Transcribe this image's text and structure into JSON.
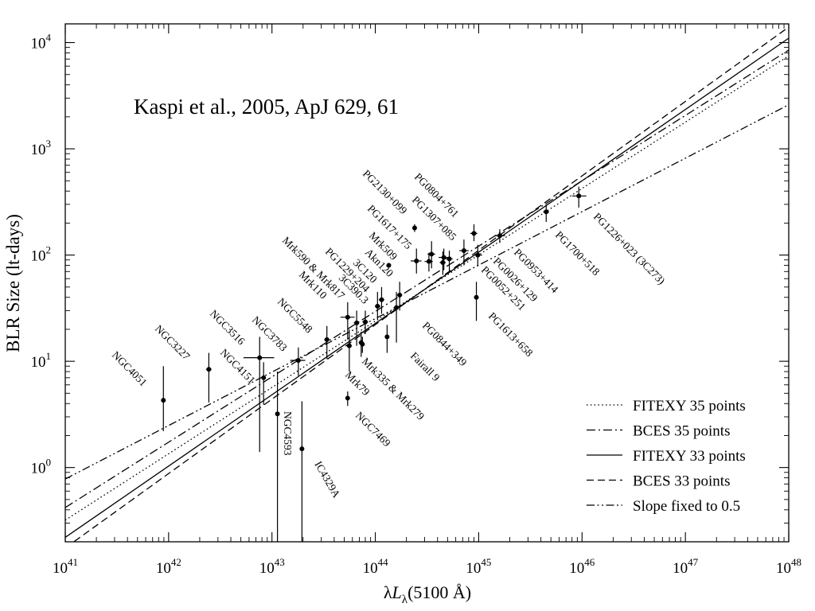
{
  "chart_data": {
    "type": "scatter",
    "annotation": "Kaspi et al., 2005, ApJ 629, 61",
    "xlabel": {
      "main": "λ",
      "sym": "L",
      "sub": "λ",
      "rest": "(5100 Å)"
    },
    "ylabel": "BLR Size (lt-days)",
    "xscale": "log",
    "yscale": "log",
    "xlim": [
      1e+41,
      1e+48
    ],
    "ylim": [
      0.2,
      15000
    ],
    "x_tick_labels": [
      {
        "base": "10",
        "exp": "41",
        "value": 1e+41
      },
      {
        "base": "10",
        "exp": "42",
        "value": 1e+42
      },
      {
        "base": "10",
        "exp": "43",
        "value": 1e+43
      },
      {
        "base": "10",
        "exp": "44",
        "value": 1e+44
      },
      {
        "base": "10",
        "exp": "45",
        "value": 1e+45
      },
      {
        "base": "10",
        "exp": "46",
        "value": 1e+46
      },
      {
        "base": "10",
        "exp": "47",
        "value": 1e+47
      },
      {
        "base": "10",
        "exp": "48",
        "value": 1e+48
      }
    ],
    "y_tick_labels": [
      {
        "base": "10",
        "exp": "0",
        "value": 1
      },
      {
        "base": "10",
        "exp": "1",
        "value": 10
      },
      {
        "base": "10",
        "exp": "2",
        "value": 100
      },
      {
        "base": "10",
        "exp": "3",
        "value": 1000
      },
      {
        "base": "10",
        "exp": "4",
        "value": 10000
      }
    ],
    "grid": false,
    "legend_position": "bottom-right",
    "series": [
      {
        "name": "FITEXY 35 points",
        "style": "dotted",
        "points": [
          [
            1e+41,
            0.32
          ],
          [
            1e+48,
            7500
          ]
        ]
      },
      {
        "name": "BCES 35 points",
        "style": "dashdot",
        "points": [
          [
            1e+41,
            0.42
          ],
          [
            1e+48,
            8500
          ]
        ]
      },
      {
        "name": "FITEXY 33 points",
        "style": "solid",
        "points": [
          [
            1e+41,
            0.22
          ],
          [
            1e+48,
            11000
          ]
        ]
      },
      {
        "name": "BCES 33 points",
        "style": "dashed",
        "points": [
          [
            1e+41,
            0.175
          ],
          [
            1e+48,
            14000
          ]
        ]
      },
      {
        "name": "Slope fixed to 0.5",
        "style": "dashdotdot",
        "points": [
          [
            1e+41,
            0.78
          ],
          [
            1e+48,
            2600
          ]
        ]
      }
    ],
    "points": [
      {
        "label": "NGC4051",
        "x": 8.9e+41,
        "y": 4.3,
        "ylo": 2.2,
        "yhi": 9.0,
        "xlo": 8.6e+41,
        "xhi": 9.2e+41
      },
      {
        "label": "NGC3227",
        "x": 2.45e+42,
        "y": 8.4,
        "ylo": 4.1,
        "yhi": 12.0,
        "xlo": 2.3e+42,
        "xhi": 2.6e+42
      },
      {
        "label": "NGC3516",
        "x": 7.6e+42,
        "y": 10.8,
        "ylo": 1.4,
        "yhi": 17.0,
        "xlo": 5.3e+42,
        "xhi": 1.05e+43
      },
      {
        "label": "NGC4151",
        "x": 8.3e+42,
        "y": 7.0,
        "ylo": 3.9,
        "yhi": 9.8,
        "xlo": 7.9e+42,
        "xhi": 8.7e+42
      },
      {
        "label": "NGC3783",
        "x": 1.8e+43,
        "y": 10.2,
        "ylo": 7.3,
        "yhi": 13.5,
        "xlo": 1.5e+43,
        "xhi": 2.1e+43
      },
      {
        "label": "NGC4593",
        "x": 1.13e+43,
        "y": 3.2,
        "ylo": 0.2,
        "yhi": 8.0,
        "xlo": 1.1e+43,
        "xhi": 1.16e+43
      },
      {
        "label": "IC4329A",
        "x": 1.95e+43,
        "y": 1.5,
        "ylo": 0.2,
        "yhi": 4.2,
        "xlo": 1.9e+43,
        "xhi": 2e+43
      },
      {
        "label": "NGC5548",
        "x": 3.4e+43,
        "y": 16.0,
        "ylo": 10.5,
        "yhi": 21.5,
        "xlo": 3.2e+43,
        "xhi": 3.6e+43
      },
      {
        "label": "Mrk110",
        "x": 5.4e+43,
        "y": 26.0,
        "ylo": 16.0,
        "yhi": 36.0,
        "xlo": 4.6e+43,
        "xhi": 6.3e+43
      },
      {
        "label": "Mrk590 & Mrk817",
        "x": 5.6e+43,
        "y": 14.0,
        "ylo": 8.0,
        "yhi": 20.0,
        "xlo": 5.3e+43,
        "xhi": 5.9e+43
      },
      {
        "label": "PG1229+204",
        "x": 6.6e+43,
        "y": 23.0,
        "ylo": 14.0,
        "yhi": 30.0,
        "xlo": 6.2e+43,
        "xhi": 7e+43
      },
      {
        "label": "Mrk79",
        "x": 7.3e+43,
        "y": 15.0,
        "ylo": 11.0,
        "yhi": 19.0,
        "xlo": 6.9e+43,
        "xhi": 7.7e+43
      },
      {
        "label": "Mrk335 & Mrk279",
        "x": 7.5e+43,
        "y": 14.5,
        "ylo": 12.0,
        "yhi": 17.0,
        "xlo": 7.1e+43,
        "xhi": 7.9e+43
      },
      {
        "label": "NGC7469",
        "x": 5.4e+43,
        "y": 4.5,
        "ylo": 3.8,
        "yhi": 5.2,
        "xlo": 5.2e+43,
        "xhi": 5.6e+43
      },
      {
        "label": "3C390.3",
        "x": 8e+43,
        "y": 23.5,
        "ylo": 18.0,
        "yhi": 30.0,
        "xlo": 7.5e+43,
        "xhi": 8.5e+43
      },
      {
        "label": "3C120",
        "x": 1.05e+44,
        "y": 33.0,
        "ylo": 25.0,
        "yhi": 45.0,
        "xlo": 9.9e+43,
        "xhi": 1.12e+44
      },
      {
        "label": "Akn120",
        "x": 1.15e+44,
        "y": 38.0,
        "ylo": 28.0,
        "yhi": 50.0,
        "xlo": 1.08e+44,
        "xhi": 1.22e+44
      },
      {
        "label": "Mrk509",
        "x": 1.35e+44,
        "y": 80.0,
        "ylo": 76.0,
        "yhi": 84.0,
        "xlo": 1.3e+44,
        "xhi": 1.4e+44
      },
      {
        "label": "Fairall 9",
        "x": 1.3e+44,
        "y": 17.0,
        "ylo": 12.0,
        "yhi": 22.0,
        "xlo": 1.25e+44,
        "xhi": 1.35e+44
      },
      {
        "label": "PG0844+349",
        "x": 1.6e+44,
        "y": 32.0,
        "ylo": 15.0,
        "yhi": 45.0,
        "xlo": 1.5e+44,
        "xhi": 1.7e+44
      },
      {
        "label": "PG1617+175",
        "x": 2.5e+44,
        "y": 88.0,
        "ylo": 67.0,
        "yhi": 115.0,
        "xlo": 2.2e+44,
        "xhi": 2.8e+44
      },
      {
        "label": "PG2130+099",
        "x": 2.4e+44,
        "y": 180.0,
        "ylo": 165.0,
        "yhi": 195.0,
        "xlo": 2.3e+44,
        "xhi": 2.5e+44
      },
      {
        "label": "PG1307+085",
        "x": 3.5e+44,
        "y": 102.0,
        "ylo": 75.0,
        "yhi": 135.0,
        "xlo": 3.2e+44,
        "xhi": 3.8e+44
      },
      {
        "label": "PG0052+251",
        "x": 4.5e+44,
        "y": 85.0,
        "ylo": 65.0,
        "yhi": 108.0,
        "xlo": 4.2e+44,
        "xhi": 4.8e+44
      },
      {
        "label": "PG0026+129",
        "x": 4.6e+44,
        "y": 95.0,
        "ylo": 72.0,
        "yhi": 115.0,
        "xlo": 4.1e+44,
        "xhi": 5.1e+44
      },
      {
        "label": "PG1613+658",
        "x": 9.5e+44,
        "y": 40.0,
        "ylo": 24.0,
        "yhi": 56.0,
        "xlo": 9e+44,
        "xhi": 1e+45
      },
      {
        "label": "PG0804+761",
        "x": 9e+44,
        "y": 160.0,
        "ylo": 135.0,
        "yhi": 195.0,
        "xlo": 8.3e+44,
        "xhi": 9.7e+44
      },
      {
        "label": "PG0953+414",
        "x": 1.6e+45,
        "y": 152.0,
        "ylo": 130.0,
        "yhi": 175.0,
        "xlo": 1.45e+45,
        "xhi": 1.8e+45
      },
      {
        "label": "PG1700+518",
        "x": 4.5e+45,
        "y": 255.0,
        "ylo": 205.0,
        "yhi": 300.0,
        "xlo": 4.2e+45,
        "xhi": 4.8e+45
      },
      {
        "label": "PG1226+023 (3C273)",
        "x": 9.3e+45,
        "y": 360.0,
        "ylo": 280.0,
        "yhi": 440.0,
        "xlo": 8e+45,
        "xhi": 1.1e+46
      },
      {
        "label": "",
        "x": 3.3e+44,
        "y": 87.0,
        "ylo": 70.0,
        "yhi": 105.0,
        "xlo": 3e+44,
        "xhi": 3.6e+44
      },
      {
        "label": "",
        "x": 5.2e+44,
        "y": 92.0,
        "ylo": 70.0,
        "yhi": 110.0,
        "xlo": 4.8e+44,
        "xhi": 5.6e+44
      },
      {
        "label": "",
        "x": 7.2e+44,
        "y": 110.0,
        "ylo": 80.0,
        "yhi": 140.0,
        "xlo": 6.5e+44,
        "xhi": 8e+44
      },
      {
        "label": "",
        "x": 9.8e+44,
        "y": 100.0,
        "ylo": 78.0,
        "yhi": 125.0,
        "xlo": 9e+44,
        "xhi": 1.08e+45
      },
      {
        "label": "",
        "x": 1.72e+44,
        "y": 42.0,
        "ylo": 30.0,
        "yhi": 56.0,
        "xlo": 1.62e+44,
        "xhi": 1.82e+44
      }
    ]
  }
}
